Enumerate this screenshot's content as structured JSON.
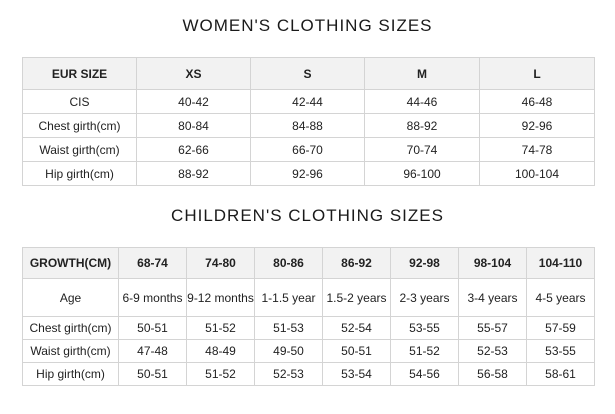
{
  "women": {
    "title": "WOMEN'S CLOTHING SIZES",
    "header": [
      "EUR SIZE",
      "XS",
      "S",
      "M",
      "L"
    ],
    "rows": [
      [
        "CIS",
        "40-42",
        "42-44",
        "44-46",
        "46-48"
      ],
      [
        "Chest girth(cm)",
        "80-84",
        "84-88",
        "88-92",
        "92-96"
      ],
      [
        "Waist girth(cm)",
        "62-66",
        "66-70",
        "70-74",
        "74-78"
      ],
      [
        "Hip girth(cm)",
        "88-92",
        "92-96",
        "96-100",
        "100-104"
      ]
    ]
  },
  "children": {
    "title": "CHILDREN'S CLOTHING SIZES",
    "header": [
      "GROWTH(CM)",
      "68-74",
      "74-80",
      "80-86",
      "86-92",
      "92-98",
      "98-104",
      "104-110"
    ],
    "rows": [
      [
        "Age",
        "6-9 months",
        "9-12 months",
        "1-1.5 year",
        "1.5-2 years",
        "2-3 years",
        "3-4 years",
        "4-5 years"
      ],
      [
        "Chest girth(cm)",
        "50-51",
        "51-52",
        "51-53",
        "52-54",
        "53-55",
        "55-57",
        "57-59"
      ],
      [
        "Waist girth(cm)",
        "47-48",
        "48-49",
        "49-50",
        "50-51",
        "51-52",
        "52-53",
        "53-55"
      ],
      [
        "Hip girth(cm)",
        "50-51",
        "51-52",
        "52-53",
        "53-54",
        "54-56",
        "56-58",
        "58-61"
      ]
    ]
  }
}
